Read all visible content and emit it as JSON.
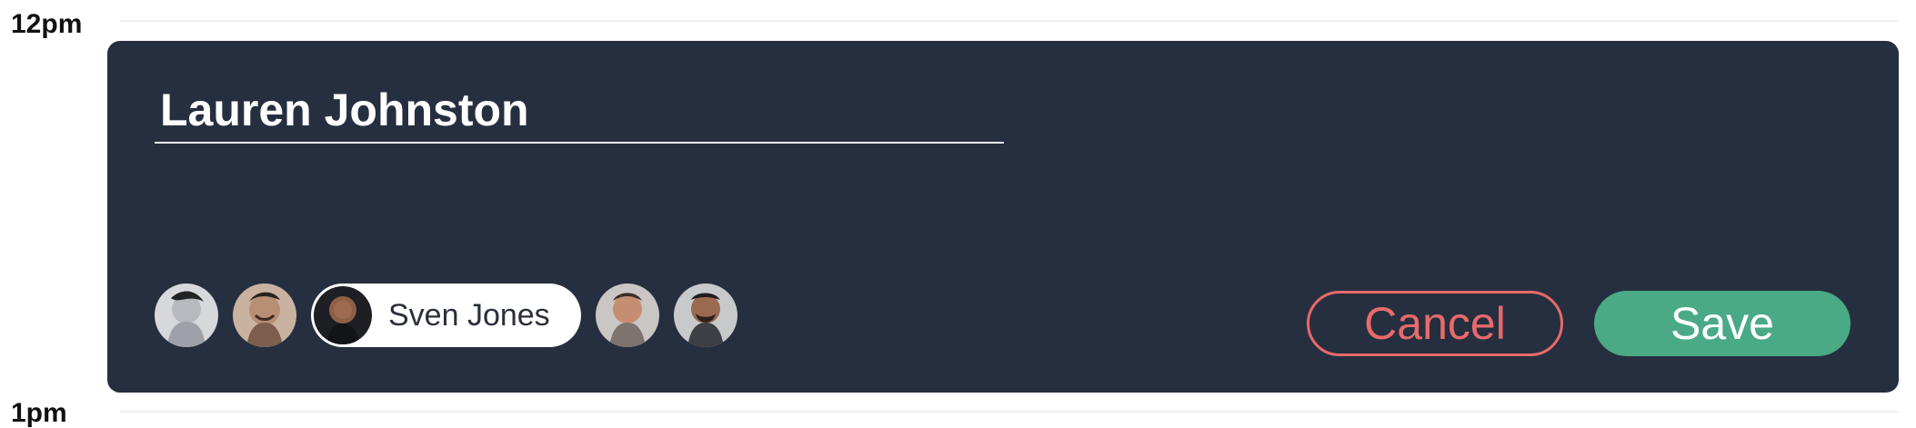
{
  "calendar": {
    "time_labels": [
      "12pm",
      "1pm"
    ]
  },
  "event_editor": {
    "title_value": "Lauren Johnston",
    "title_placeholder": "",
    "participants": [
      {
        "name": "",
        "selected": false,
        "icon": "avatar-female"
      },
      {
        "name": "",
        "selected": false,
        "icon": "avatar-male-smiling"
      },
      {
        "name": "Sven Jones",
        "selected": true,
        "icon": "avatar-male-bald"
      },
      {
        "name": "",
        "selected": false,
        "icon": "avatar-male"
      },
      {
        "name": "",
        "selected": false,
        "icon": "avatar-male-beard"
      }
    ],
    "cancel_label": "Cancel",
    "save_label": "Save",
    "colors": {
      "card_background": "#262f3f",
      "cancel_accent": "#e86a6a",
      "save_accent": "#4aaa86",
      "title_underline": "#e9eef5"
    }
  }
}
